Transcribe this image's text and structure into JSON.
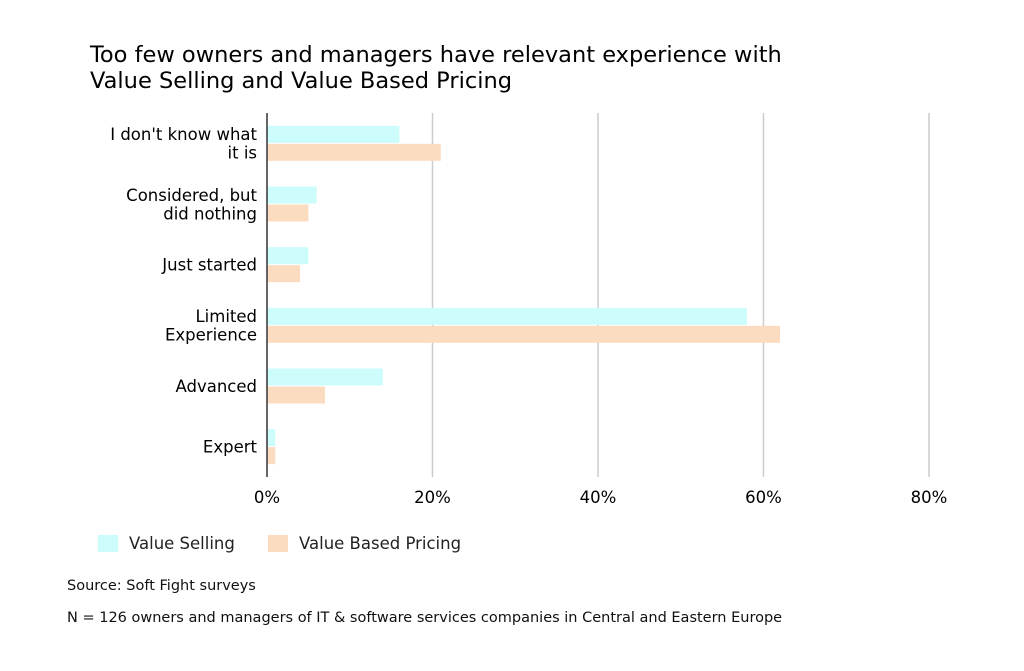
{
  "chart_data": {
    "type": "bar",
    "orientation": "horizontal",
    "title_lines": [
      "Too few owners and managers have relevant experience with",
      "Value Selling and Value Based Pricing"
    ],
    "categories": [
      [
        "I don't know what",
        "it is"
      ],
      [
        "Considered, but",
        "did nothing"
      ],
      [
        "Just started"
      ],
      [
        "Limited",
        "Experience"
      ],
      [
        "Advanced"
      ],
      [
        "Expert"
      ]
    ],
    "series": [
      {
        "name": "Value Selling",
        "color": "#ccfcfc",
        "values": [
          16,
          6,
          5,
          58,
          14,
          1
        ]
      },
      {
        "name": "Value Based Pricing",
        "color": "#fcdcc0",
        "values": [
          21,
          5,
          4,
          62,
          7,
          1
        ]
      }
    ],
    "xlim": [
      0,
      80
    ],
    "xticks": [
      0,
      20,
      40,
      60,
      80
    ],
    "xtick_labels": [
      "0%",
      "20%",
      "40%",
      "60%",
      "80%"
    ],
    "grid": "vertical",
    "legend_position": "bottom-left"
  },
  "notes": {
    "source": "Source: Soft Fight surveys",
    "sample": "N = 126 owners and managers of IT & software services companies in Central and Eastern Europe"
  }
}
